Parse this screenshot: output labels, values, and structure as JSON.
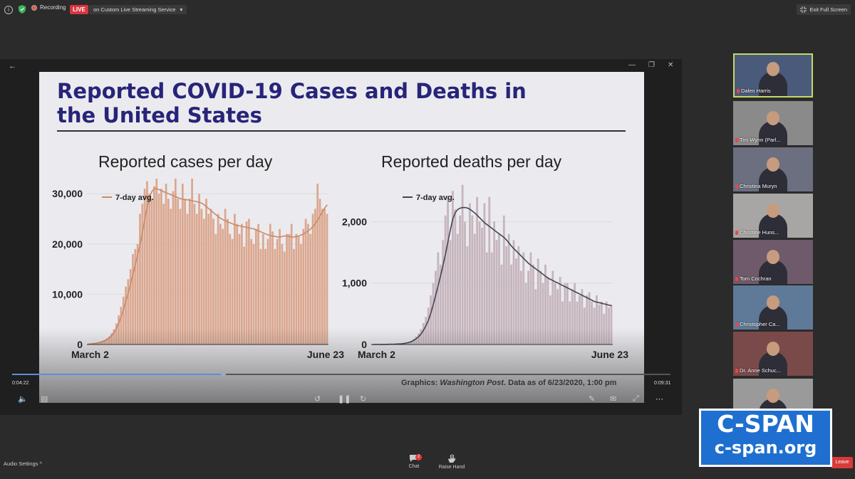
{
  "topbar": {
    "recording_label": "Recording",
    "live_label": "LIVE",
    "stream_label": "on Custom Live Streaming Service",
    "stream_caret": "▾",
    "exit_label": "Exit Full Screen"
  },
  "slide": {
    "title_line1": "Reported COVID-19 Cases and Deaths in",
    "title_line2": "the United States",
    "credit_prefix": "Graphics: ",
    "credit_source": "Washington Post",
    "credit_suffix": ". Data as of 6/23/2020, 1:00 pm"
  },
  "chart_data": [
    {
      "type": "bar",
      "title": "Reported cases per day",
      "x_start_label": "March 2",
      "x_end_label": "June 23",
      "ylim": [
        0,
        33000
      ],
      "yticks": [
        0,
        10000,
        20000,
        30000
      ],
      "ytick_labels": [
        "0",
        "10,000",
        "20,000",
        "30,000"
      ],
      "legend": "7-day avg.",
      "bar_color": "#dba78f",
      "line_color": "#c98a6a",
      "values": [
        100,
        150,
        200,
        300,
        400,
        500,
        700,
        900,
        1200,
        1600,
        2200,
        3000,
        4200,
        5800,
        7500,
        9500,
        11500,
        13000,
        15000,
        18000,
        19000,
        20000,
        26000,
        28000,
        31000,
        32500,
        30000,
        29000,
        31500,
        33000,
        30000,
        31000,
        28000,
        32000,
        29000,
        27000,
        30500,
        33000,
        29000,
        27000,
        32000,
        29000,
        26000,
        29000,
        33000,
        28000,
        26000,
        30000,
        27000,
        25000,
        29000,
        26000,
        27000,
        25000,
        22000,
        26000,
        24000,
        23000,
        27000,
        25000,
        22000,
        21000,
        26000,
        24000,
        22000,
        24000,
        19500,
        24500,
        25000,
        21000,
        20000,
        23000,
        24000,
        19000,
        22000,
        19000,
        21000,
        24000,
        22500,
        19000,
        21000,
        23000,
        20000,
        18500,
        22000,
        22000,
        24000,
        19000,
        22000,
        21500,
        20000,
        23000,
        25000,
        24000,
        22000,
        26000,
        27000,
        32000,
        29000,
        27000,
        27000,
        26000
      ],
      "avg_values": [
        100,
        120,
        160,
        220,
        300,
        420,
        560,
        760,
        1000,
        1350,
        1800,
        2400,
        3200,
        4300,
        5600,
        7000,
        8700,
        10400,
        12200,
        14100,
        16000,
        18000,
        20000,
        22500,
        25000,
        27500,
        29500,
        30500,
        31000,
        31000,
        30800,
        30600,
        30400,
        30200,
        30000,
        29800,
        29600,
        29400,
        29200,
        29000,
        28900,
        28800,
        28800,
        28700,
        28600,
        28500,
        28400,
        28300,
        28100,
        27800,
        27400,
        27000,
        26600,
        26200,
        25800,
        25400,
        25100,
        24800,
        24600,
        24400,
        24200,
        24000,
        23800,
        23700,
        23600,
        23500,
        23400,
        23300,
        23200,
        23100,
        23000,
        22800,
        22600,
        22400,
        22200,
        22000,
        21800,
        21700,
        21600,
        21500,
        21400,
        21400,
        21500,
        21600,
        21600,
        21500,
        21400,
        21400,
        21500,
        21600,
        21800,
        22000,
        22300,
        22600,
        23000,
        23500,
        24100,
        24800,
        25600,
        26400,
        27200,
        27800
      ]
    },
    {
      "type": "bar",
      "title": "Reported deaths per day",
      "x_start_label": "March 2",
      "x_end_label": "June 23",
      "ylim": [
        0,
        2700
      ],
      "yticks": [
        0,
        1000,
        2000
      ],
      "ytick_labels": [
        "0",
        "1,000",
        "2,000"
      ],
      "legend": "7-day avg.",
      "bar_color": "#c6b5bd",
      "line_color": "#444458",
      "values": [
        0,
        0,
        0,
        0,
        1,
        1,
        2,
        3,
        4,
        6,
        8,
        10,
        15,
        20,
        30,
        45,
        60,
        90,
        130,
        180,
        250,
        350,
        450,
        600,
        800,
        1000,
        1200,
        1500,
        1300,
        1700,
        2100,
        2400,
        1700,
        2500,
        2200,
        1800,
        2100,
        2600,
        2000,
        1600,
        2300,
        2100,
        1800,
        2400,
        2000,
        1900,
        2300,
        1500,
        2400,
        1500,
        2000,
        1700,
        1800,
        1300,
        2100,
        1600,
        1800,
        1300,
        1700,
        1400,
        1600,
        1200,
        1500,
        1000,
        1200,
        1500,
        1300,
        900,
        1400,
        1200,
        1000,
        1300,
        1100,
        800,
        1200,
        1000,
        900,
        1100,
        700,
        1000,
        1000,
        700,
        900,
        1000,
        700,
        800,
        900,
        600,
        800,
        850,
        700,
        600,
        800,
        650,
        700,
        500,
        700,
        600,
        650
      ],
      "avg_values": [
        0,
        0,
        0,
        0,
        1,
        1,
        2,
        3,
        4,
        5,
        7,
        9,
        12,
        17,
        24,
        34,
        48,
        68,
        95,
        130,
        175,
        235,
        310,
        400,
        520,
        660,
        810,
        970,
        1130,
        1300,
        1480,
        1680,
        1880,
        2050,
        2150,
        2200,
        2220,
        2230,
        2230,
        2220,
        2200,
        2170,
        2140,
        2100,
        2060,
        2020,
        1980,
        1950,
        1920,
        1890,
        1860,
        1830,
        1800,
        1770,
        1740,
        1700,
        1650,
        1600,
        1560,
        1520,
        1480,
        1440,
        1400,
        1360,
        1320,
        1290,
        1260,
        1230,
        1200,
        1170,
        1140,
        1110,
        1080,
        1060,
        1040,
        1020,
        1000,
        980,
        960,
        940,
        920,
        900,
        880,
        860,
        840,
        820,
        800,
        780,
        760,
        740,
        720,
        700,
        690,
        680,
        670,
        660,
        650,
        640,
        630
      ]
    }
  ],
  "player": {
    "elapsed": "0:04:22",
    "total": "0:09:31",
    "progress_fraction": 0.32
  },
  "participants": [
    {
      "name": "Dalen Harris",
      "active": true,
      "bg": "#4a5a7a"
    },
    {
      "name": "Tim Wynn (Parl...",
      "active": false,
      "bg": "#8a8a8a"
    },
    {
      "name": "Christina Muryn",
      "active": false,
      "bg": "#6b6f80"
    },
    {
      "name": "Christine Huns...",
      "active": false,
      "bg": "#a8a6a4"
    },
    {
      "name": "Tom Cochran",
      "active": false,
      "bg": "#6e5a6a"
    },
    {
      "name": "Christopher Ca...",
      "active": false,
      "bg": "#5f7a98"
    },
    {
      "name": "Dr. Anne Schuc...",
      "active": false,
      "bg": "#7a4a4a"
    },
    {
      "name": "",
      "active": false,
      "bg": "#9a9a9a"
    }
  ],
  "bottom": {
    "audio_label": "Audio Settings",
    "audio_caret": "^",
    "chat_label": "Chat",
    "chat_badge": "2",
    "raise_label": "Raise Hand",
    "leave_label": "Leave"
  },
  "logo": {
    "top": "C-SPAN",
    "bottom": "c-span.org"
  },
  "colors": {
    "title": "#272479",
    "live": "#d9363e",
    "cspan_blue": "#1f6fd0"
  }
}
